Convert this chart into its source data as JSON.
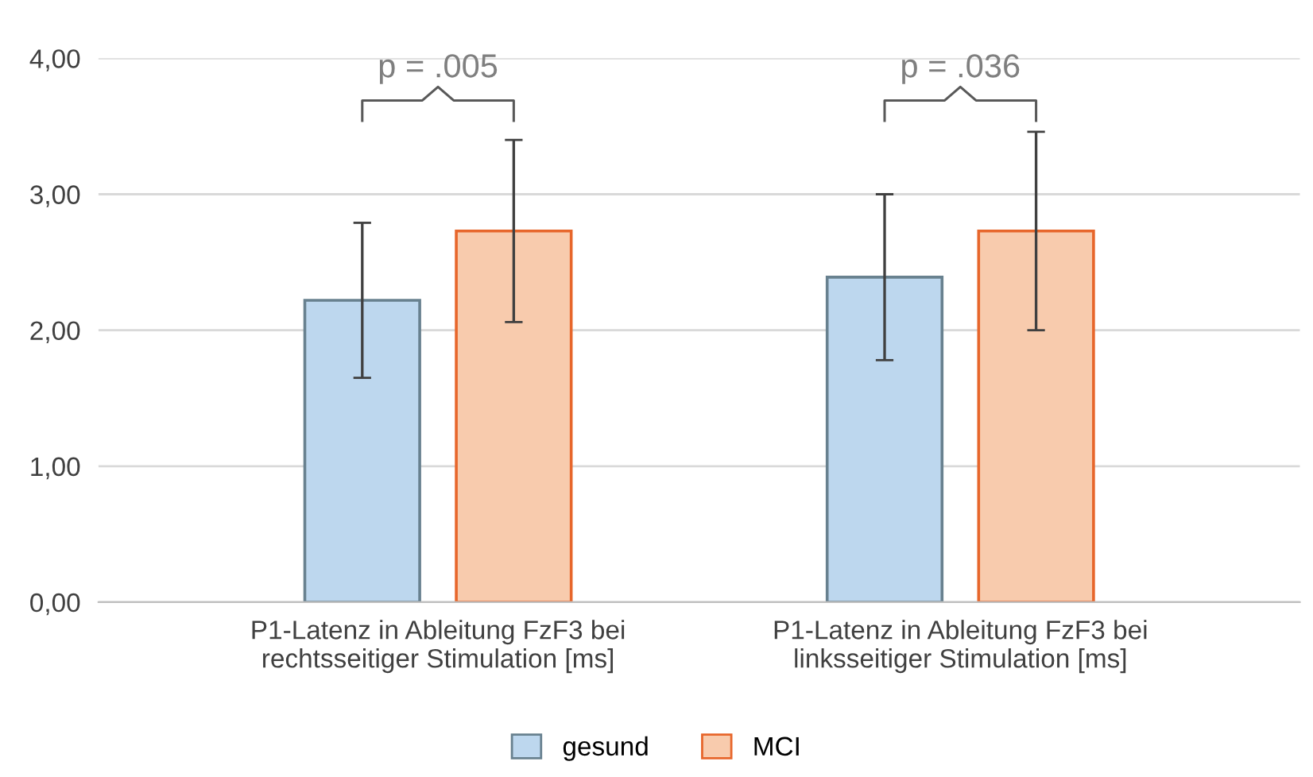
{
  "chart_data": {
    "type": "bar",
    "categories": [
      "P1-Latenz in Ableitung FzF3 bei\nrechtsseitiger Stimulation [ms]",
      "P1-Latenz in Ableitung FzF3 bei\nlinksseitiger Stimulation [ms]"
    ],
    "series": [
      {
        "name": "gesund",
        "color": "#bdd7ee",
        "values": [
          2.22,
          2.39
        ],
        "errors": [
          0.57,
          0.61
        ]
      },
      {
        "name": "MCI",
        "color": "#f8cbad",
        "values": [
          2.73,
          2.73
        ],
        "errors": [
          0.67,
          0.73
        ]
      }
    ],
    "ylim": [
      0,
      4
    ],
    "yticks": [
      {
        "value": 0,
        "label": "0,00"
      },
      {
        "value": 1,
        "label": "1,00"
      },
      {
        "value": 2,
        "label": "2,00"
      },
      {
        "value": 3,
        "label": "3,00"
      },
      {
        "value": 4,
        "label": "4,00"
      }
    ],
    "grid": "y",
    "legend": "bottom",
    "annotations": [
      "p = .005",
      "p = .036"
    ]
  }
}
